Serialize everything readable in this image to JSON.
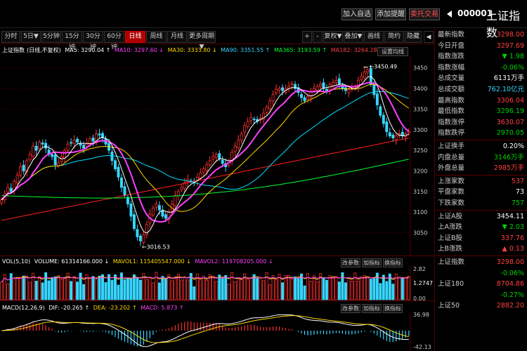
{
  "header": {
    "buttons": [
      "加入自选",
      "添加提醒",
      "委托交易"
    ],
    "code": "000001",
    "name": "上证指数"
  },
  "toolbar": {
    "periods": [
      "分时",
      "5日▼",
      "5分钟",
      "15分钟",
      "30分钟",
      "60分钟",
      "日线",
      "周线",
      "月线",
      "更多周期▼"
    ],
    "active": "日线",
    "right": [
      "+",
      "-",
      "复权▼",
      "叠加▼",
      "画线",
      "简约",
      "隐藏"
    ]
  },
  "main_legend": {
    "name": "上证指数",
    "mode": "(日线,不复权)",
    "ma5": "MA5: 3290.04 ↑",
    "ma10": "MA10: 3297.60 ↓",
    "ma30": "MA30: 3333.80 ↓",
    "ma60": "MA90: 3351.55 ↑",
    "ma365": "MA365: 3193.59 ↑",
    "ma182": "MA182: 3264.28 ↑",
    "settings": "设置均线"
  },
  "vol_legend": {
    "name": "VOL(5,10)",
    "volume": "VOLUME: 61314166.000 ↓",
    "mavol1": "MAVOL1: 115405547.000 ↓",
    "mavol2": "MAVOL2: 119708205.000 ↓",
    "btns": [
      "改参数",
      "加指标",
      "换指标"
    ]
  },
  "macd_legend": {
    "name": "MACD(12,26,9)",
    "dif": "DIF: -20.265 ↑",
    "dea": "DEA: -23.202 ↑",
    "macd": "MACD: 5.873 ↑",
    "btns": [
      "改参数",
      "加指标",
      "换指标"
    ]
  },
  "annotations": {
    "high": "3450.49",
    "low": "3016.53"
  },
  "colors": {
    "up": "#ff3030",
    "down": "#38d6ff",
    "ma5": "#ffffff",
    "ma10": "#ff40ff",
    "ma30": "#ffd700",
    "ma60": "#00e0ff",
    "ma365": "#00ff30",
    "ma182": "#ff2020"
  },
  "chart_data": {
    "type": "candlestick",
    "price_ticks": [
      3450,
      3400,
      3350,
      3300,
      3250,
      3200,
      3150,
      3100,
      3050
    ],
    "ylim": [
      3010,
      3470
    ],
    "closes": [
      3130,
      3145,
      3160,
      3150,
      3175,
      3190,
      3210,
      3200,
      3225,
      3240,
      3260,
      3250,
      3270,
      3265,
      3255,
      3240,
      3235,
      3215,
      3220,
      3235,
      3250,
      3265,
      3268,
      3275,
      3270,
      3262,
      3255,
      3268,
      3278,
      3272,
      3290,
      3287,
      3280,
      3265,
      3250,
      3225,
      3205,
      3185,
      3160,
      3140,
      3120,
      3090,
      3060,
      3040,
      3030,
      3045,
      3070,
      3095,
      3110,
      3120,
      3105,
      3090,
      3085,
      3100,
      3120,
      3140,
      3150,
      3160,
      3172,
      3180,
      3175,
      3172,
      3185,
      3195,
      3205,
      3215,
      3225,
      3235,
      3240,
      3230,
      3218,
      3210,
      3225,
      3245,
      3260,
      3275,
      3290,
      3310,
      3320,
      3330,
      3325,
      3320,
      3328,
      3340,
      3355,
      3370,
      3385,
      3398,
      3400,
      3395,
      3400,
      3405,
      3412,
      3400,
      3390,
      3378,
      3370,
      3380,
      3392,
      3400,
      3405,
      3410,
      3400,
      3395,
      3410,
      3415,
      3420,
      3410,
      3400,
      3395,
      3398,
      3400,
      3405,
      3420,
      3430,
      3440,
      3445,
      3410,
      3385,
      3360,
      3335,
      3315,
      3295,
      3285,
      3280,
      3285,
      3290,
      3285,
      3290,
      3295
    ],
    "vol_ticks": [
      "2.82",
      "1.2747",
      "0.00"
    ],
    "macd_ticks": [
      "36.98",
      "",
      "-42.13"
    ]
  }
}
